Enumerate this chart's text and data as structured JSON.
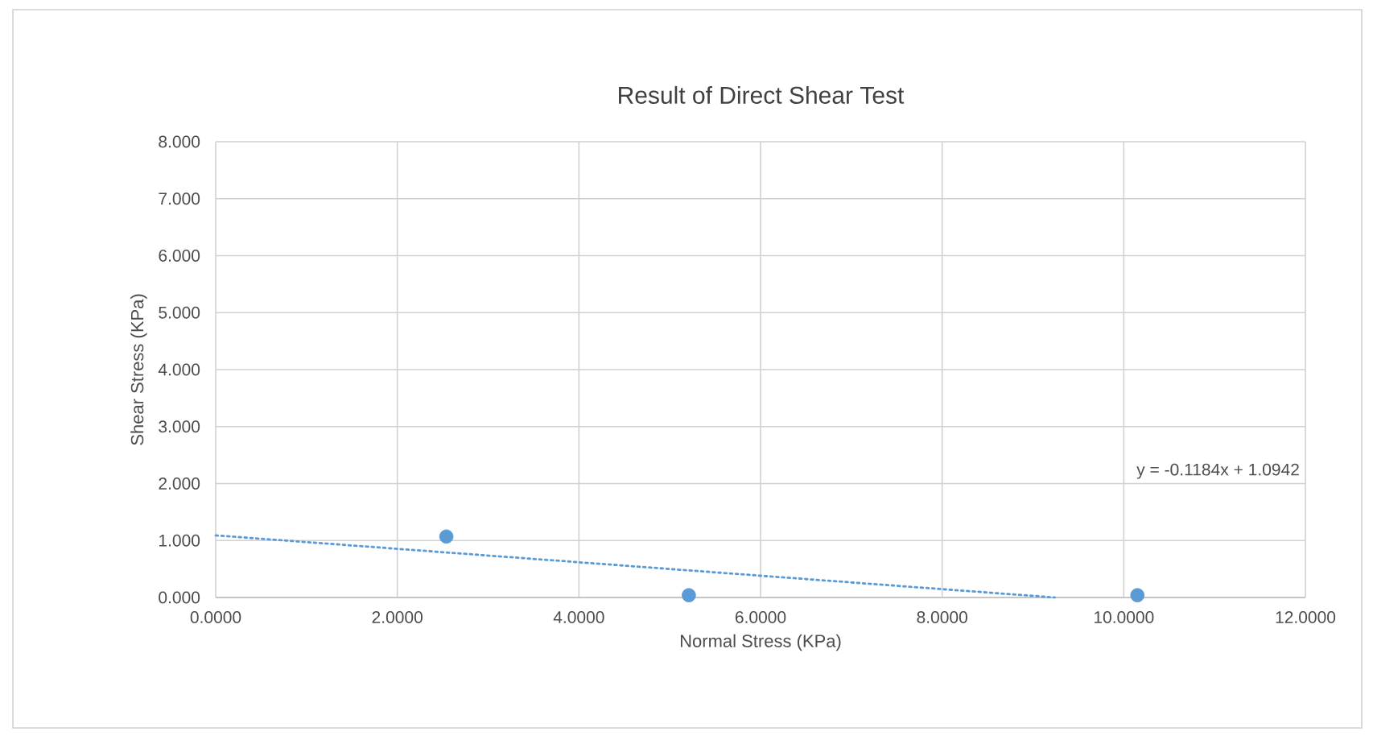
{
  "chart_data": {
    "type": "scatter",
    "title": "Result of Direct Shear Test",
    "xlabel": "Normal Stress (KPa)",
    "ylabel": "Shear Stress (KPa)",
    "annotations": [
      "y = -0.1184x + 1.0942"
    ],
    "series": [
      {
        "color": "#5b9bd5",
        "x": [
          2.54,
          5.21,
          10.15
        ],
        "values": [
          1.07,
          0.04,
          0.04
        ],
        "marker": "circle"
      },
      {
        "type": "line",
        "color": "#5b9bd5",
        "x": [
          0,
          9.24
        ],
        "values": [
          1.09,
          0
        ],
        "line_style": "dotted",
        "marker": "none"
      }
    ],
    "xlim": [
      0,
      12
    ],
    "ylim": [
      0,
      8
    ],
    "xticks": [
      {
        "value": 0,
        "label": "0.0000"
      },
      {
        "value": 2,
        "label": "2.0000"
      },
      {
        "value": 4,
        "label": "4.0000"
      },
      {
        "value": 6,
        "label": "6.0000"
      },
      {
        "value": 8,
        "label": "8.0000"
      },
      {
        "value": 10,
        "label": "10.0000"
      },
      {
        "value": 12,
        "label": "12.0000"
      }
    ],
    "yticks": [
      {
        "value": 0,
        "label": "0.000"
      },
      {
        "value": 1,
        "label": "1.000"
      },
      {
        "value": 2,
        "label": "2.000"
      },
      {
        "value": 3,
        "label": "3.000"
      },
      {
        "value": 4,
        "label": "4.000"
      },
      {
        "value": 5,
        "label": "5.000"
      },
      {
        "value": 6,
        "label": "6.000"
      },
      {
        "value": 7,
        "label": "7.000"
      },
      {
        "value": 8,
        "label": "8.000"
      }
    ],
    "grid": true
  }
}
